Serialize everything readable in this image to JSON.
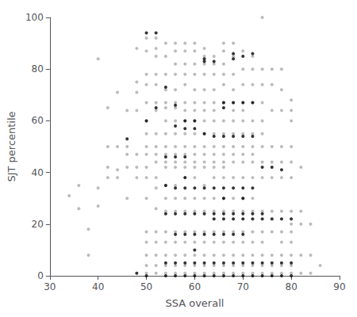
{
  "chart_data": {
    "type": "scatter",
    "xlabel": "SSA overall",
    "ylabel": "SJT percentile",
    "xlim": [
      30,
      90
    ],
    "ylim": [
      0,
      100
    ],
    "xticks": [
      30,
      40,
      50,
      60,
      70,
      80,
      90
    ],
    "yticks": [
      0,
      20,
      40,
      60,
      80,
      100
    ],
    "grid": false,
    "series": [
      {
        "color": "#aaaaaa",
        "x": [
          34,
          36,
          36,
          38,
          38,
          40,
          40,
          40,
          42,
          42,
          42,
          42,
          44,
          44,
          44,
          44,
          46,
          46,
          46,
          46,
          46,
          48,
          48,
          48,
          48,
          48,
          48,
          48,
          50,
          50,
          50,
          50,
          50,
          50,
          50,
          50,
          50,
          50,
          50,
          50,
          50,
          50,
          50,
          50,
          50,
          52,
          52,
          52,
          52,
          52,
          52,
          52,
          52,
          52,
          52,
          52,
          52,
          52,
          52,
          52,
          52,
          52,
          52,
          52,
          54,
          54,
          54,
          54,
          54,
          54,
          54,
          54,
          54,
          54,
          54,
          54,
          54,
          54,
          54,
          54,
          54,
          54,
          54,
          54,
          56,
          56,
          56,
          56,
          56,
          56,
          56,
          56,
          56,
          56,
          56,
          56,
          56,
          56,
          56,
          56,
          56,
          56,
          56,
          56,
          56,
          58,
          58,
          58,
          58,
          58,
          58,
          58,
          58,
          58,
          58,
          58,
          58,
          58,
          58,
          58,
          58,
          58,
          58,
          58,
          58,
          58,
          60,
          60,
          60,
          60,
          60,
          60,
          60,
          60,
          60,
          60,
          60,
          60,
          60,
          60,
          60,
          60,
          60,
          60,
          60,
          60,
          60,
          62,
          62,
          62,
          62,
          62,
          62,
          62,
          62,
          62,
          62,
          62,
          62,
          62,
          62,
          62,
          62,
          62,
          62,
          62,
          62,
          62,
          64,
          64,
          64,
          64,
          64,
          64,
          64,
          64,
          64,
          64,
          64,
          64,
          64,
          64,
          64,
          64,
          64,
          64,
          64,
          64,
          66,
          66,
          66,
          66,
          66,
          66,
          66,
          66,
          66,
          66,
          66,
          66,
          66,
          66,
          66,
          66,
          66,
          66,
          66,
          66,
          68,
          68,
          68,
          68,
          68,
          68,
          68,
          68,
          68,
          68,
          68,
          68,
          68,
          68,
          68,
          68,
          68,
          68,
          68,
          70,
          70,
          70,
          70,
          70,
          70,
          70,
          70,
          70,
          70,
          70,
          70,
          70,
          70,
          70,
          70,
          70,
          70,
          72,
          72,
          72,
          72,
          72,
          72,
          72,
          72,
          72,
          72,
          72,
          72,
          72,
          72,
          72,
          72,
          72,
          74,
          74,
          74,
          74,
          74,
          74,
          74,
          74,
          74,
          74,
          74,
          74,
          74,
          74,
          74,
          76,
          76,
          76,
          76,
          76,
          76,
          76,
          76,
          76,
          76,
          76,
          78,
          78,
          78,
          78,
          78,
          78,
          78,
          78,
          78,
          78,
          78,
          78,
          80,
          80,
          80,
          80,
          80,
          80,
          80,
          80,
          80,
          80,
          80,
          80,
          80,
          82,
          82,
          82,
          82,
          82,
          84,
          84,
          84,
          86
        ],
        "values": [
          31,
          35,
          26,
          18,
          8,
          84,
          27,
          34,
          65,
          50,
          42,
          38,
          71,
          50,
          38,
          41,
          64,
          50,
          47,
          42,
          30,
          88,
          75,
          71,
          64,
          47,
          42,
          38,
          92,
          87,
          78,
          74,
          67,
          60,
          55,
          50,
          47,
          42,
          38,
          30,
          17,
          13,
          8,
          4,
          1,
          92,
          88,
          85,
          78,
          74,
          67,
          64,
          55,
          50,
          47,
          44,
          38,
          34,
          26,
          17,
          13,
          8,
          4,
          1,
          90,
          85,
          78,
          72,
          67,
          65,
          60,
          55,
          50,
          47,
          44,
          42,
          35,
          30,
          25,
          17,
          13,
          8,
          4,
          1,
          90,
          87,
          82,
          78,
          72,
          67,
          65,
          60,
          55,
          50,
          47,
          44,
          42,
          35,
          30,
          25,
          17,
          13,
          8,
          4,
          1,
          90,
          87,
          82,
          78,
          74,
          67,
          64,
          60,
          55,
          50,
          47,
          44,
          42,
          38,
          30,
          25,
          17,
          13,
          8,
          4,
          1,
          90,
          87,
          82,
          78,
          72,
          67,
          64,
          60,
          55,
          50,
          47,
          44,
          42,
          38,
          30,
          25,
          17,
          13,
          8,
          4,
          1,
          88,
          85,
          82,
          78,
          72,
          67,
          64,
          60,
          55,
          50,
          47,
          44,
          42,
          35,
          30,
          25,
          17,
          13,
          8,
          4,
          1,
          85,
          82,
          78,
          72,
          67,
          64,
          60,
          55,
          50,
          47,
          44,
          42,
          38,
          30,
          25,
          17,
          13,
          8,
          4,
          1,
          90,
          87,
          82,
          78,
          74,
          67,
          60,
          55,
          50,
          47,
          44,
          42,
          38,
          30,
          25,
          17,
          13,
          8,
          4,
          1,
          90,
          85,
          78,
          72,
          67,
          64,
          60,
          55,
          50,
          47,
          44,
          38,
          30,
          25,
          17,
          13,
          8,
          4,
          1,
          87,
          80,
          74,
          67,
          64,
          60,
          55,
          50,
          47,
          44,
          38,
          30,
          25,
          17,
          13,
          8,
          4,
          1,
          85,
          80,
          74,
          67,
          60,
          55,
          50,
          47,
          44,
          38,
          30,
          25,
          17,
          13,
          8,
          4,
          1,
          100,
          80,
          74,
          67,
          60,
          55,
          50,
          44,
          38,
          25,
          17,
          13,
          8,
          4,
          1,
          80,
          74,
          64,
          50,
          44,
          38,
          25,
          17,
          8,
          4,
          1,
          80,
          72,
          64,
          50,
          44,
          38,
          25,
          17,
          13,
          8,
          4,
          1,
          68,
          64,
          60,
          50,
          44,
          38,
          25,
          20,
          17,
          13,
          8,
          4,
          1,
          42,
          25,
          20,
          8,
          1,
          20,
          8,
          1,
          4
        ]
      },
      {
        "color": "#000000",
        "x": [
          46,
          48,
          50,
          50,
          50,
          52,
          52,
          54,
          54,
          54,
          54,
          54,
          54,
          56,
          56,
          56,
          56,
          56,
          56,
          56,
          56,
          58,
          58,
          58,
          58,
          58,
          58,
          58,
          58,
          58,
          60,
          60,
          60,
          60,
          60,
          60,
          60,
          60,
          62,
          62,
          62,
          62,
          62,
          62,
          62,
          62,
          64,
          64,
          64,
          64,
          64,
          64,
          64,
          64,
          66,
          66,
          66,
          66,
          66,
          66,
          66,
          66,
          66,
          66,
          68,
          68,
          68,
          68,
          68,
          68,
          68,
          68,
          68,
          68,
          70,
          70,
          70,
          70,
          70,
          70,
          70,
          70,
          70,
          70,
          72,
          72,
          72,
          72,
          72,
          72,
          72,
          72,
          74,
          74,
          74,
          74,
          74,
          76,
          76,
          76,
          76,
          78,
          78,
          78,
          78,
          80,
          80,
          80
        ],
        "values": [
          53,
          1,
          94,
          60,
          0,
          94,
          65,
          73,
          46,
          35,
          24,
          5,
          0,
          66,
          58,
          46,
          34,
          24,
          16,
          5,
          0,
          60,
          57,
          46,
          38,
          34,
          24,
          16,
          5,
          0,
          60,
          57,
          34,
          24,
          16,
          10,
          5,
          0,
          84,
          83,
          55,
          34,
          24,
          16,
          5,
          0,
          83,
          54,
          34,
          24,
          22,
          16,
          5,
          0,
          67,
          65,
          54,
          34,
          30,
          24,
          22,
          16,
          5,
          0,
          86,
          84,
          67,
          54,
          34,
          24,
          22,
          16,
          5,
          0,
          85,
          67,
          54,
          34,
          30,
          24,
          22,
          16,
          5,
          0,
          86,
          67,
          54,
          34,
          24,
          22,
          5,
          0,
          42,
          24,
          22,
          5,
          0,
          42,
          22,
          5,
          0,
          41,
          22,
          5,
          0,
          22,
          5,
          0
        ]
      }
    ]
  }
}
